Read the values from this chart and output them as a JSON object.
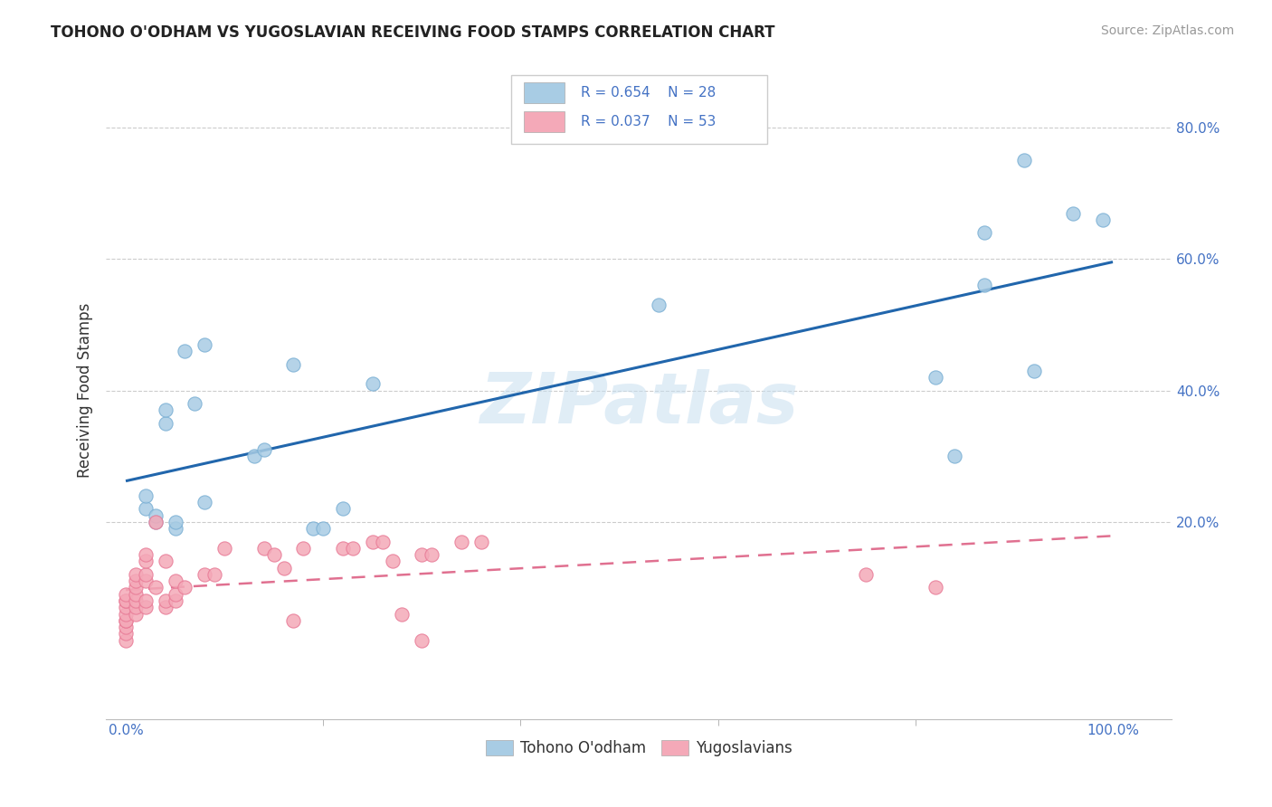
{
  "title": "TOHONO O'ODHAM VS YUGOSLAVIAN RECEIVING FOOD STAMPS CORRELATION CHART",
  "source": "Source: ZipAtlas.com",
  "ylabel": "Receiving Food Stamps",
  "xlim": [
    -0.02,
    1.06
  ],
  "ylim": [
    -0.1,
    0.9
  ],
  "tohono_R": "R = 0.654",
  "tohono_N": "N = 28",
  "yugo_R": "R = 0.037",
  "yugo_N": "N = 53",
  "tohono_color": "#a8cce4",
  "tohono_edge": "#7aafd4",
  "yugo_color": "#f4a9b8",
  "yugo_edge": "#e87a96",
  "tohono_line_color": "#2166ac",
  "yugo_line_color": "#e07090",
  "legend_label_1": "Tohono O'odham",
  "legend_label_2": "Yugoslavians",
  "watermark": "ZIPatlas",
  "tohono_x": [
    0.02,
    0.02,
    0.03,
    0.03,
    0.04,
    0.04,
    0.05,
    0.05,
    0.06,
    0.07,
    0.08,
    0.08,
    0.13,
    0.14,
    0.17,
    0.19,
    0.2,
    0.22,
    0.25,
    0.54,
    0.82,
    0.84,
    0.87,
    0.87,
    0.91,
    0.92,
    0.96,
    0.99
  ],
  "tohono_y": [
    0.22,
    0.24,
    0.2,
    0.21,
    0.35,
    0.37,
    0.19,
    0.2,
    0.46,
    0.38,
    0.23,
    0.47,
    0.3,
    0.31,
    0.44,
    0.19,
    0.19,
    0.22,
    0.41,
    0.53,
    0.42,
    0.3,
    0.56,
    0.64,
    0.75,
    0.43,
    0.67,
    0.66
  ],
  "yugo_x": [
    0.0,
    0.0,
    0.0,
    0.0,
    0.0,
    0.0,
    0.0,
    0.0,
    0.0,
    0.0,
    0.01,
    0.01,
    0.01,
    0.01,
    0.01,
    0.01,
    0.01,
    0.02,
    0.02,
    0.02,
    0.02,
    0.02,
    0.02,
    0.03,
    0.03,
    0.04,
    0.04,
    0.04,
    0.05,
    0.05,
    0.05,
    0.06,
    0.08,
    0.09,
    0.1,
    0.14,
    0.15,
    0.16,
    0.17,
    0.18,
    0.22,
    0.23,
    0.25,
    0.26,
    0.27,
    0.28,
    0.3,
    0.3,
    0.31,
    0.34,
    0.36,
    0.75,
    0.82
  ],
  "yugo_y": [
    0.02,
    0.03,
    0.04,
    0.05,
    0.05,
    0.06,
    0.07,
    0.08,
    0.08,
    0.09,
    0.06,
    0.07,
    0.08,
    0.09,
    0.1,
    0.11,
    0.12,
    0.07,
    0.08,
    0.11,
    0.12,
    0.14,
    0.15,
    0.1,
    0.2,
    0.07,
    0.08,
    0.14,
    0.08,
    0.09,
    0.11,
    0.1,
    0.12,
    0.12,
    0.16,
    0.16,
    0.15,
    0.13,
    0.05,
    0.16,
    0.16,
    0.16,
    0.17,
    0.17,
    0.14,
    0.06,
    0.02,
    0.15,
    0.15,
    0.17,
    0.17,
    0.12,
    0.1
  ]
}
